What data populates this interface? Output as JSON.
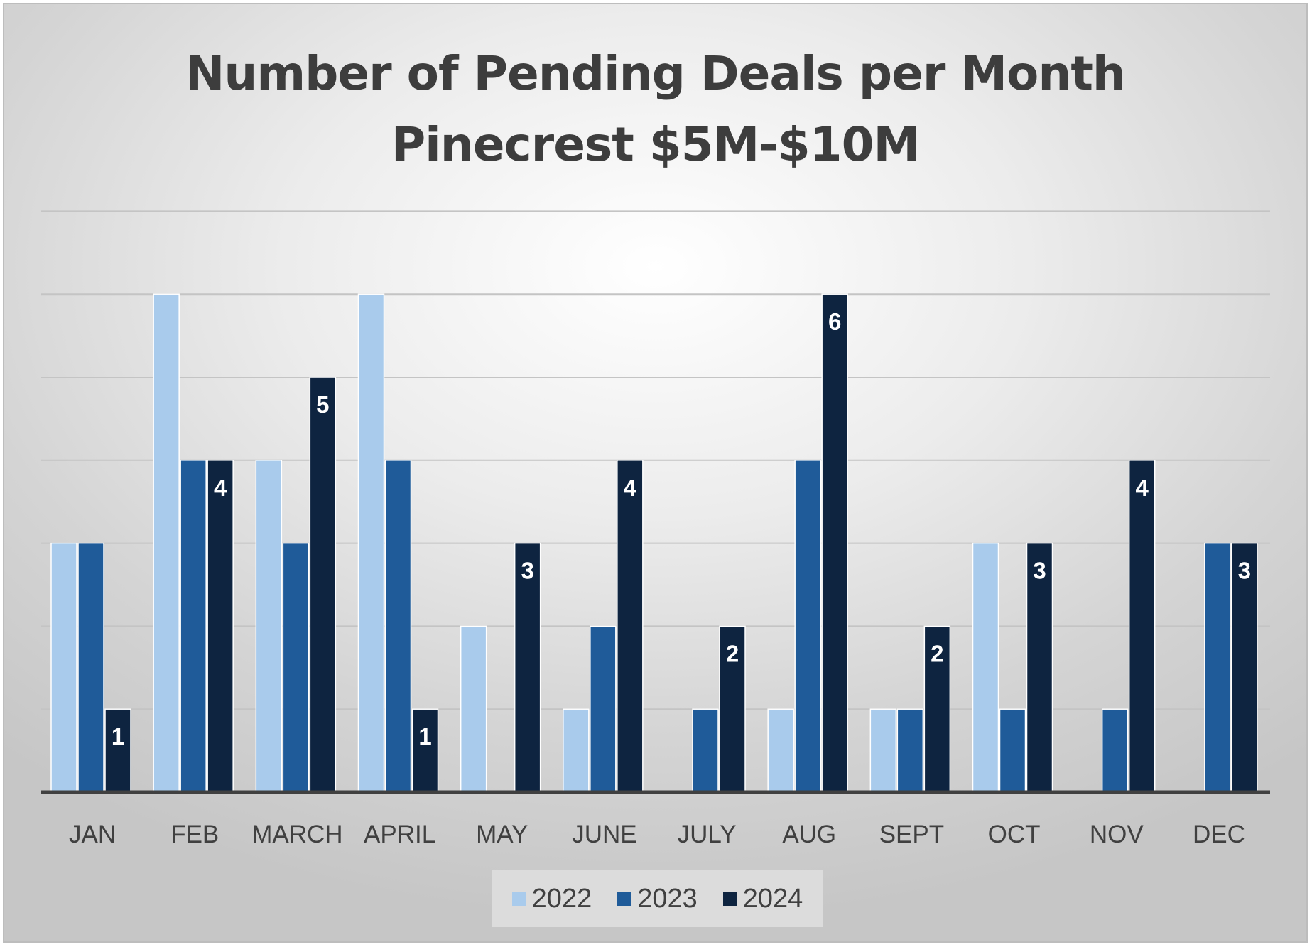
{
  "chart_data": {
    "type": "bar",
    "title": "Number of Pending Deals per Month",
    "subtitle": "Pinecrest $5M-$10M",
    "categories": [
      "JAN",
      "FEB",
      "MARCH",
      "APRIL",
      "MAY",
      "JUNE",
      "JULY",
      "AUG",
      "SEPT",
      "OCT",
      "NOV",
      "DEC"
    ],
    "series": [
      {
        "name": "2022",
        "color": "#a9cbec",
        "values": [
          3,
          6,
          4,
          6,
          2,
          1,
          0,
          1,
          1,
          3,
          0,
          0
        ]
      },
      {
        "name": "2023",
        "color": "#1f5b99",
        "values": [
          3,
          4,
          3,
          4,
          0,
          2,
          1,
          4,
          1,
          1,
          1,
          3
        ]
      },
      {
        "name": "2024",
        "color": "#0e2440",
        "values": [
          1,
          4,
          5,
          1,
          3,
          4,
          2,
          6,
          2,
          3,
          4,
          3
        ]
      }
    ],
    "data_labels_series": "2024",
    "ylim": [
      0,
      7
    ],
    "y_gridlines": [
      1,
      2,
      3,
      4,
      5,
      6,
      7
    ],
    "grid": true,
    "y_axis_labels_shown": false,
    "legend": "bottom"
  }
}
